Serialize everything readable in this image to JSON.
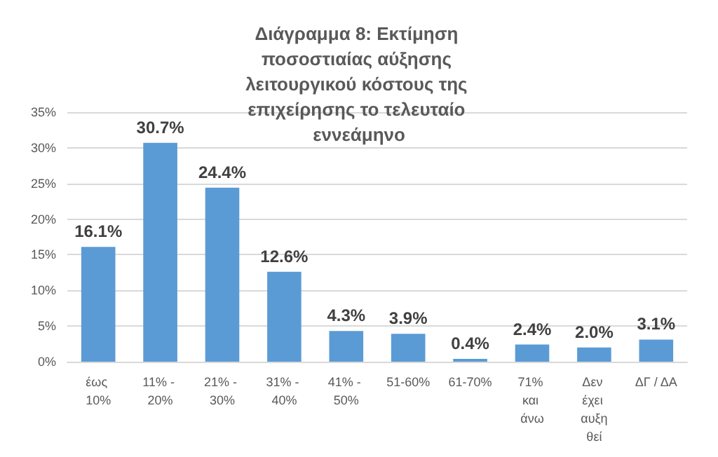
{
  "chart_data": {
    "type": "bar",
    "title": "Διάγραμμα 8: Εκτίμηση ποσοστιαίας αύξησης λειτουργικού κόστους της επιχείρησης το τελευταίο εννεάμηνο",
    "categories": [
      "έως 10%",
      "11% - 20%",
      "21% - 30%",
      "31% - 40%",
      "41% - 50%",
      "51-60%",
      "61-70%",
      "71% και άνω",
      "Δεν έχει αυξηθεί",
      "ΔΓ / ΔΑ"
    ],
    "values": [
      16.1,
      30.7,
      24.4,
      12.6,
      4.3,
      3.9,
      0.4,
      2.4,
      2.0,
      3.1
    ],
    "value_labels": [
      "16.1%",
      "30.7%",
      "24.4%",
      "12.6%",
      "4.3%",
      "3.9%",
      "0.4%",
      "2.4%",
      "2.0%",
      "3.1%"
    ],
    "color": "#5b9bd5",
    "ylim": [
      0,
      35
    ],
    "yticks": [
      {
        "value": 0,
        "label": "0%"
      },
      {
        "value": 5,
        "label": "5%"
      },
      {
        "value": 10,
        "label": "10%"
      },
      {
        "value": 15,
        "label": "15%"
      },
      {
        "value": 20,
        "label": "20%"
      },
      {
        "value": 25,
        "label": "25%"
      },
      {
        "value": 30,
        "label": "30%"
      },
      {
        "value": 35,
        "label": "35%"
      }
    ],
    "grid": "y"
  }
}
